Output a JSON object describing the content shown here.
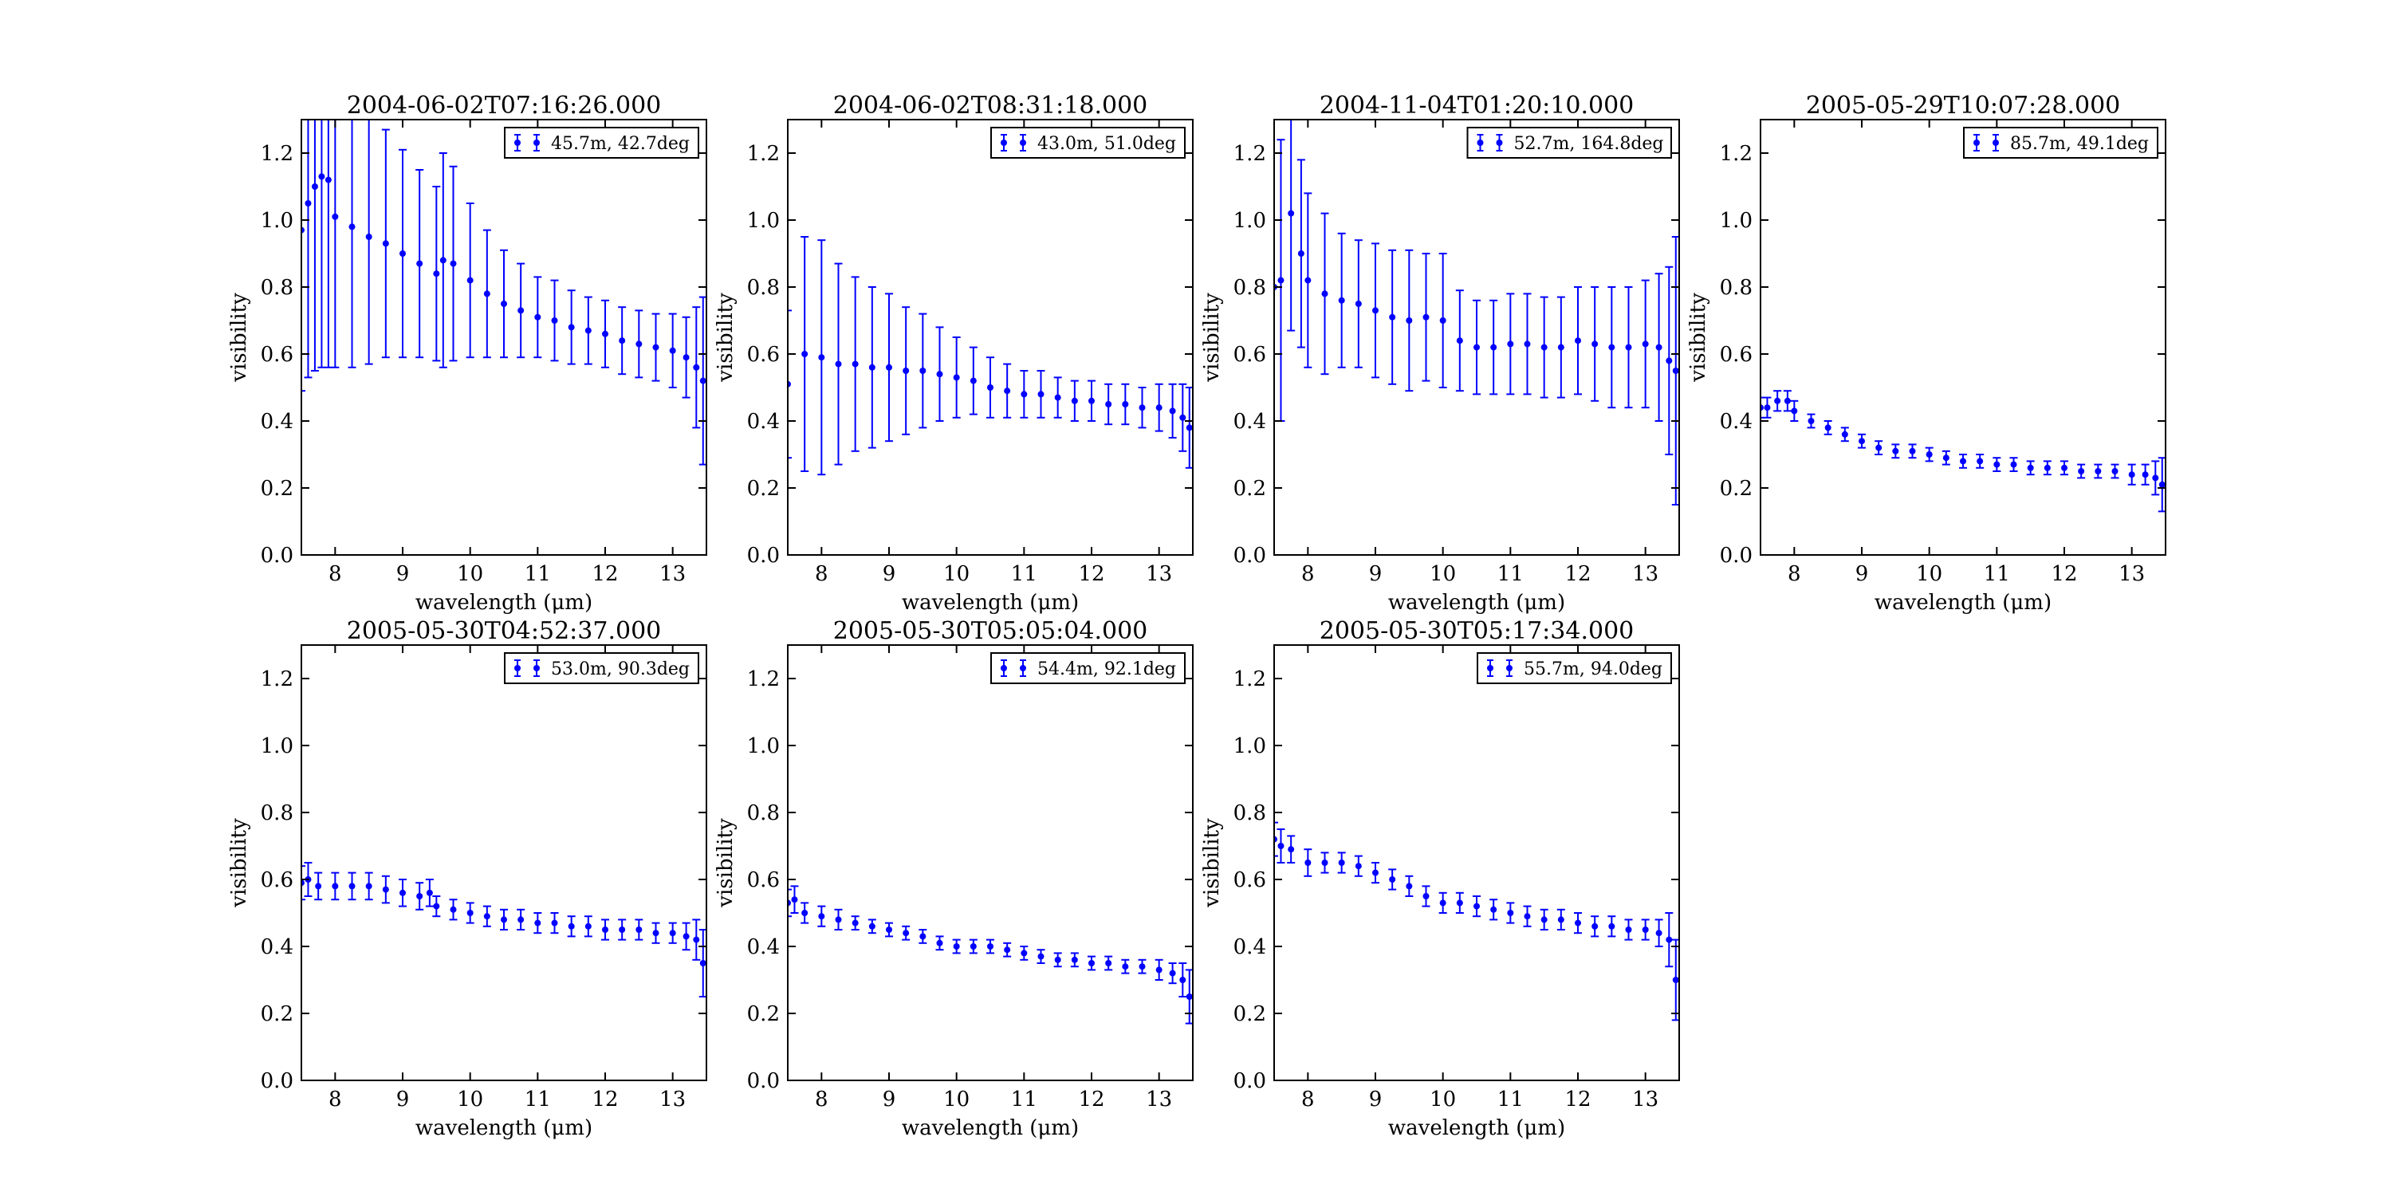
{
  "figure": {
    "accent_color": "#0000ff",
    "axis_color": "#000000"
  },
  "chart_data": [
    {
      "type": "scatter",
      "title": "2004-06-02T07:16:26.000",
      "xlabel": "wavelength (μm)",
      "ylabel": "visibility",
      "xlim": [
        7.5,
        13.5
      ],
      "ylim": [
        0.0,
        1.3
      ],
      "xticks": [
        8,
        9,
        10,
        11,
        12,
        13
      ],
      "yticks": [
        0.0,
        0.2,
        0.4,
        0.6,
        0.8,
        1.0,
        1.2
      ],
      "grid": false,
      "legend_position": "top-right",
      "series": [
        {
          "name": "45.7m, 42.7deg",
          "color": "#0000ff",
          "x": [
            7.5,
            7.6,
            7.7,
            7.8,
            7.9,
            8.0,
            8.25,
            8.5,
            8.75,
            9.0,
            9.25,
            9.5,
            9.6,
            9.75,
            10.0,
            10.25,
            10.5,
            10.75,
            11.0,
            11.25,
            11.5,
            11.75,
            12.0,
            12.25,
            12.5,
            12.75,
            13.0,
            13.2,
            13.35,
            13.45
          ],
          "y": [
            0.97,
            1.05,
            1.1,
            1.13,
            1.12,
            1.01,
            0.98,
            0.95,
            0.93,
            0.9,
            0.87,
            0.84,
            0.88,
            0.87,
            0.82,
            0.78,
            0.75,
            0.73,
            0.71,
            0.7,
            0.68,
            0.67,
            0.66,
            0.64,
            0.63,
            0.62,
            0.61,
            0.59,
            0.56,
            0.52
          ],
          "err": [
            0.48,
            0.52,
            0.55,
            0.57,
            0.56,
            0.45,
            0.42,
            0.38,
            0.34,
            0.31,
            0.28,
            0.26,
            0.32,
            0.29,
            0.23,
            0.19,
            0.16,
            0.14,
            0.12,
            0.12,
            0.11,
            0.1,
            0.1,
            0.1,
            0.1,
            0.1,
            0.11,
            0.12,
            0.18,
            0.25
          ]
        }
      ]
    },
    {
      "type": "scatter",
      "title": "2004-06-02T08:31:18.000",
      "xlabel": "wavelength (μm)",
      "ylabel": "visibility",
      "xlim": [
        7.5,
        13.5
      ],
      "ylim": [
        0.0,
        1.3
      ],
      "xticks": [
        8,
        9,
        10,
        11,
        12,
        13
      ],
      "yticks": [
        0.0,
        0.2,
        0.4,
        0.6,
        0.8,
        1.0,
        1.2
      ],
      "grid": false,
      "legend_position": "top-right",
      "series": [
        {
          "name": "43.0m, 51.0deg",
          "color": "#0000ff",
          "x": [
            7.5,
            7.75,
            8.0,
            8.25,
            8.5,
            8.75,
            9.0,
            9.25,
            9.5,
            9.75,
            10.0,
            10.25,
            10.5,
            10.75,
            11.0,
            11.25,
            11.5,
            11.75,
            12.0,
            12.25,
            12.5,
            12.75,
            13.0,
            13.2,
            13.35,
            13.45
          ],
          "y": [
            0.51,
            0.6,
            0.59,
            0.57,
            0.57,
            0.56,
            0.56,
            0.55,
            0.55,
            0.54,
            0.53,
            0.52,
            0.5,
            0.49,
            0.48,
            0.48,
            0.47,
            0.46,
            0.46,
            0.45,
            0.45,
            0.44,
            0.44,
            0.43,
            0.41,
            0.38
          ],
          "err": [
            0.22,
            0.35,
            0.35,
            0.3,
            0.26,
            0.24,
            0.22,
            0.19,
            0.17,
            0.14,
            0.12,
            0.1,
            0.09,
            0.08,
            0.07,
            0.07,
            0.06,
            0.06,
            0.06,
            0.06,
            0.06,
            0.06,
            0.07,
            0.08,
            0.1,
            0.12
          ]
        }
      ]
    },
    {
      "type": "scatter",
      "title": "2004-11-04T01:20:10.000",
      "xlabel": "wavelength (μm)",
      "ylabel": "visibility",
      "xlim": [
        7.5,
        13.5
      ],
      "ylim": [
        0.0,
        1.3
      ],
      "xticks": [
        8,
        9,
        10,
        11,
        12,
        13
      ],
      "yticks": [
        0.0,
        0.2,
        0.4,
        0.6,
        0.8,
        1.0,
        1.2
      ],
      "grid": false,
      "legend_position": "top-right",
      "series": [
        {
          "name": "52.7m, 164.8deg",
          "color": "#0000ff",
          "x": [
            7.5,
            7.6,
            7.75,
            7.9,
            8.0,
            8.25,
            8.5,
            8.75,
            9.0,
            9.25,
            9.5,
            9.75,
            10.0,
            10.25,
            10.5,
            10.75,
            11.0,
            11.25,
            11.5,
            11.75,
            12.0,
            12.25,
            12.5,
            12.75,
            13.0,
            13.2,
            13.35,
            13.45
          ],
          "y": [
            0.8,
            0.82,
            1.02,
            0.9,
            0.82,
            0.78,
            0.76,
            0.75,
            0.73,
            0.71,
            0.7,
            0.71,
            0.7,
            0.64,
            0.62,
            0.62,
            0.63,
            0.63,
            0.62,
            0.62,
            0.64,
            0.63,
            0.62,
            0.62,
            0.63,
            0.62,
            0.58,
            0.55
          ],
          "err": [
            0.4,
            0.42,
            0.35,
            0.28,
            0.26,
            0.24,
            0.2,
            0.19,
            0.2,
            0.2,
            0.21,
            0.19,
            0.2,
            0.15,
            0.14,
            0.14,
            0.15,
            0.15,
            0.15,
            0.15,
            0.16,
            0.17,
            0.18,
            0.18,
            0.19,
            0.22,
            0.28,
            0.4
          ]
        }
      ]
    },
    {
      "type": "scatter",
      "title": "2005-05-29T10:07:28.000",
      "xlabel": "wavelength (μm)",
      "ylabel": "visibility",
      "xlim": [
        7.5,
        13.5
      ],
      "ylim": [
        0.0,
        1.3
      ],
      "xticks": [
        8,
        9,
        10,
        11,
        12,
        13
      ],
      "yticks": [
        0.0,
        0.2,
        0.4,
        0.6,
        0.8,
        1.0,
        1.2
      ],
      "grid": false,
      "legend_position": "top-right",
      "series": [
        {
          "name": "85.7m, 49.1deg",
          "color": "#0000ff",
          "x": [
            7.5,
            7.6,
            7.75,
            7.9,
            8.0,
            8.25,
            8.5,
            8.75,
            9.0,
            9.25,
            9.5,
            9.75,
            10.0,
            10.25,
            10.5,
            10.75,
            11.0,
            11.25,
            11.5,
            11.75,
            12.0,
            12.25,
            12.5,
            12.75,
            13.0,
            13.2,
            13.35,
            13.45
          ],
          "y": [
            0.44,
            0.44,
            0.46,
            0.46,
            0.43,
            0.4,
            0.38,
            0.36,
            0.34,
            0.32,
            0.31,
            0.31,
            0.3,
            0.29,
            0.28,
            0.28,
            0.27,
            0.27,
            0.26,
            0.26,
            0.26,
            0.25,
            0.25,
            0.25,
            0.24,
            0.24,
            0.23,
            0.21
          ],
          "err": [
            0.03,
            0.03,
            0.03,
            0.03,
            0.03,
            0.02,
            0.02,
            0.02,
            0.02,
            0.02,
            0.02,
            0.02,
            0.02,
            0.02,
            0.02,
            0.02,
            0.02,
            0.02,
            0.02,
            0.02,
            0.02,
            0.02,
            0.02,
            0.02,
            0.03,
            0.03,
            0.05,
            0.08
          ]
        }
      ]
    },
    {
      "type": "scatter",
      "title": "2005-05-30T04:52:37.000",
      "xlabel": "wavelength (μm)",
      "ylabel": "visibility",
      "xlim": [
        7.5,
        13.5
      ],
      "ylim": [
        0.0,
        1.3
      ],
      "xticks": [
        8,
        9,
        10,
        11,
        12,
        13
      ],
      "yticks": [
        0.0,
        0.2,
        0.4,
        0.6,
        0.8,
        1.0,
        1.2
      ],
      "grid": false,
      "legend_position": "top-right",
      "series": [
        {
          "name": "53.0m, 90.3deg",
          "color": "#0000ff",
          "x": [
            7.5,
            7.6,
            7.75,
            8.0,
            8.25,
            8.5,
            8.75,
            9.0,
            9.25,
            9.4,
            9.5,
            9.75,
            10.0,
            10.25,
            10.5,
            10.75,
            11.0,
            11.25,
            11.5,
            11.75,
            12.0,
            12.25,
            12.5,
            12.75,
            13.0,
            13.2,
            13.35,
            13.45
          ],
          "y": [
            0.59,
            0.6,
            0.58,
            0.58,
            0.58,
            0.58,
            0.57,
            0.56,
            0.55,
            0.56,
            0.52,
            0.51,
            0.5,
            0.49,
            0.48,
            0.48,
            0.47,
            0.47,
            0.46,
            0.46,
            0.45,
            0.45,
            0.45,
            0.44,
            0.44,
            0.43,
            0.42,
            0.35
          ],
          "err": [
            0.05,
            0.05,
            0.04,
            0.04,
            0.04,
            0.04,
            0.04,
            0.04,
            0.04,
            0.04,
            0.03,
            0.03,
            0.03,
            0.03,
            0.03,
            0.03,
            0.03,
            0.03,
            0.03,
            0.03,
            0.03,
            0.03,
            0.03,
            0.03,
            0.03,
            0.04,
            0.06,
            0.1
          ]
        }
      ]
    },
    {
      "type": "scatter",
      "title": "2005-05-30T05:05:04.000",
      "xlabel": "wavelength (μm)",
      "ylabel": "visibility",
      "xlim": [
        7.5,
        13.5
      ],
      "ylim": [
        0.0,
        1.3
      ],
      "xticks": [
        8,
        9,
        10,
        11,
        12,
        13
      ],
      "yticks": [
        0.0,
        0.2,
        0.4,
        0.6,
        0.8,
        1.0,
        1.2
      ],
      "grid": false,
      "legend_position": "top-right",
      "series": [
        {
          "name": "54.4m, 92.1deg",
          "color": "#0000ff",
          "x": [
            7.5,
            7.6,
            7.75,
            8.0,
            8.25,
            8.5,
            8.75,
            9.0,
            9.25,
            9.5,
            9.75,
            10.0,
            10.25,
            10.5,
            10.75,
            11.0,
            11.25,
            11.5,
            11.75,
            12.0,
            12.25,
            12.5,
            12.75,
            13.0,
            13.2,
            13.35,
            13.45
          ],
          "y": [
            0.53,
            0.54,
            0.5,
            0.49,
            0.48,
            0.47,
            0.46,
            0.45,
            0.44,
            0.43,
            0.41,
            0.4,
            0.4,
            0.4,
            0.39,
            0.38,
            0.37,
            0.36,
            0.36,
            0.35,
            0.35,
            0.34,
            0.34,
            0.33,
            0.32,
            0.3,
            0.25
          ],
          "err": [
            0.04,
            0.04,
            0.03,
            0.03,
            0.03,
            0.02,
            0.02,
            0.02,
            0.02,
            0.02,
            0.02,
            0.02,
            0.02,
            0.02,
            0.02,
            0.02,
            0.02,
            0.02,
            0.02,
            0.02,
            0.02,
            0.02,
            0.02,
            0.03,
            0.03,
            0.05,
            0.08
          ]
        }
      ]
    },
    {
      "type": "scatter",
      "title": "2005-05-30T05:17:34.000",
      "xlabel": "wavelength (μm)",
      "ylabel": "visibility",
      "xlim": [
        7.5,
        13.5
      ],
      "ylim": [
        0.0,
        1.3
      ],
      "xticks": [
        8,
        9,
        10,
        11,
        12,
        13
      ],
      "yticks": [
        0.0,
        0.2,
        0.4,
        0.6,
        0.8,
        1.0,
        1.2
      ],
      "grid": false,
      "legend_position": "top-right",
      "series": [
        {
          "name": "55.7m, 94.0deg",
          "color": "#0000ff",
          "x": [
            7.5,
            7.6,
            7.75,
            8.0,
            8.25,
            8.5,
            8.75,
            9.0,
            9.25,
            9.5,
            9.75,
            10.0,
            10.25,
            10.5,
            10.75,
            11.0,
            11.25,
            11.5,
            11.75,
            12.0,
            12.25,
            12.5,
            12.75,
            13.0,
            13.2,
            13.35,
            13.45
          ],
          "y": [
            0.72,
            0.7,
            0.69,
            0.65,
            0.65,
            0.65,
            0.64,
            0.62,
            0.6,
            0.58,
            0.55,
            0.53,
            0.53,
            0.52,
            0.51,
            0.5,
            0.49,
            0.48,
            0.48,
            0.47,
            0.46,
            0.46,
            0.45,
            0.45,
            0.44,
            0.42,
            0.3
          ],
          "err": [
            0.05,
            0.05,
            0.04,
            0.04,
            0.03,
            0.03,
            0.03,
            0.03,
            0.03,
            0.03,
            0.03,
            0.03,
            0.03,
            0.03,
            0.03,
            0.03,
            0.03,
            0.03,
            0.03,
            0.03,
            0.03,
            0.03,
            0.03,
            0.03,
            0.04,
            0.08,
            0.12
          ]
        }
      ]
    }
  ]
}
